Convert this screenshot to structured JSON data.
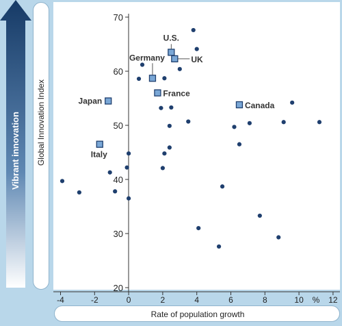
{
  "side_label": "Vibrant innovation",
  "colors": {
    "background": "#b9d7ea",
    "arrow_dark": "#163a66",
    "arrow_light": "#ffffff",
    "marker_fill": "#1f3f6e",
    "highlight_fill": "#7aa7d6",
    "highlight_edge": "#1f3f6e",
    "axis": "#333333"
  },
  "chart_data": {
    "type": "scatter",
    "title": "",
    "xlabel": "Rate of population growth",
    "ylabel": "Global Innovation Index",
    "xlim": [
      -4.4,
      12.2
    ],
    "ylim": [
      19,
      71
    ],
    "x_ticks": [
      {
        "value": -4,
        "label": "-4"
      },
      {
        "value": -2,
        "label": "-2"
      },
      {
        "value": 0,
        "label": "0"
      },
      {
        "value": 2,
        "label": "2"
      },
      {
        "value": 4,
        "label": "4"
      },
      {
        "value": 6,
        "label": "6"
      },
      {
        "value": 8,
        "label": "8"
      },
      {
        "value": 10,
        "label": "10"
      },
      {
        "value": 12,
        "label": "12"
      }
    ],
    "x_unit_label": "%",
    "y_ticks": [
      {
        "value": 20,
        "label": "20"
      },
      {
        "value": 30,
        "label": "30"
      },
      {
        "value": 40,
        "label": "40"
      },
      {
        "value": 50,
        "label": "50"
      },
      {
        "value": 60,
        "label": "60"
      },
      {
        "value": 70,
        "label": "70"
      }
    ],
    "grid": false,
    "highlighted": [
      {
        "label": "U.S.",
        "x": 2.5,
        "y": 63.5
      },
      {
        "label": "Germany",
        "x": 1.4,
        "y": 58.7
      },
      {
        "label": "UK",
        "x": 2.7,
        "y": 62.3
      },
      {
        "label": "France",
        "x": 1.7,
        "y": 56.0
      },
      {
        "label": "Japan",
        "x": -1.2,
        "y": 54.5
      },
      {
        "label": "Canada",
        "x": 6.5,
        "y": 53.8
      },
      {
        "label": "Italy",
        "x": -1.7,
        "y": 46.5
      }
    ],
    "points": [
      {
        "x": 3.8,
        "y": 67.6
      },
      {
        "x": 4.0,
        "y": 64.1
      },
      {
        "x": 0.8,
        "y": 61.2
      },
      {
        "x": 3.0,
        "y": 60.4
      },
      {
        "x": 0.6,
        "y": 58.6
      },
      {
        "x": 2.1,
        "y": 58.7
      },
      {
        "x": 9.6,
        "y": 54.2
      },
      {
        "x": 1.9,
        "y": 53.2
      },
      {
        "x": 2.5,
        "y": 53.3
      },
      {
        "x": 3.5,
        "y": 50.7
      },
      {
        "x": 7.1,
        "y": 50.4
      },
      {
        "x": 9.1,
        "y": 50.6
      },
      {
        "x": 11.2,
        "y": 50.6
      },
      {
        "x": 6.2,
        "y": 49.7
      },
      {
        "x": 2.4,
        "y": 49.9
      },
      {
        "x": 6.5,
        "y": 46.5
      },
      {
        "x": 2.4,
        "y": 45.9
      },
      {
        "x": 2.1,
        "y": 44.8
      },
      {
        "x": 0.0,
        "y": 44.8
      },
      {
        "x": -0.1,
        "y": 42.2
      },
      {
        "x": 2.0,
        "y": 42.1
      },
      {
        "x": -1.1,
        "y": 41.3
      },
      {
        "x": -3.9,
        "y": 39.7
      },
      {
        "x": 5.5,
        "y": 38.7
      },
      {
        "x": -2.9,
        "y": 37.6
      },
      {
        "x": -0.8,
        "y": 37.8
      },
      {
        "x": 0.0,
        "y": 36.5
      },
      {
        "x": 7.7,
        "y": 33.3
      },
      {
        "x": 4.1,
        "y": 31.0
      },
      {
        "x": 8.8,
        "y": 29.3
      },
      {
        "x": 5.3,
        "y": 27.6
      }
    ]
  }
}
